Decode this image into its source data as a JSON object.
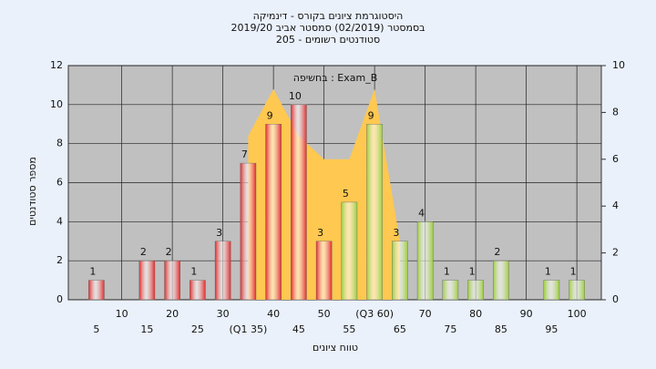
{
  "chart_data": {
    "type": "bar",
    "title": [
      "היסטוגרמת ציונים בקורס - דינמיקה",
      "בסמסטר  (02/2019)  סמסטר אביב 2019/20",
      "סטודנטים רשומים - 205"
    ],
    "y_label": "מספר סטודנטים",
    "x_label": "טווח ציונים",
    "categories": [
      "5",
      "10",
      "15",
      "20",
      "25",
      "30",
      "(Q1 35)",
      "40",
      "45",
      "50",
      "55",
      "(Q3 60)",
      "65",
      "70",
      "75",
      "80",
      "85",
      "90",
      "95",
      "100"
    ],
    "series": [
      {
        "name": "בחשיפה : Exam_B",
        "values": [
          1,
          0,
          2,
          2,
          1,
          3,
          7,
          9,
          10,
          3,
          5,
          9,
          3,
          4,
          1,
          1,
          2,
          0,
          1,
          1
        ],
        "colors": [
          "#e02a2a",
          "#e02a2a",
          "#e02a2a",
          "#e02a2a",
          "#e02a2a",
          "#e02a2a",
          "#e02a2a",
          "#e02a2a",
          "#e02a2a",
          "#e02a2a",
          "#9ccc3c",
          "#9ccc3c",
          "#9ccc3c",
          "#9ccc3c",
          "#9ccc3c",
          "#9ccc3c",
          "#9ccc3c",
          "#9ccc3c",
          "#9ccc3c",
          "#9ccc3c"
        ]
      },
      {
        "type": "area",
        "axis": "y2",
        "color": "#ffc850",
        "values": [
          null,
          null,
          null,
          null,
          null,
          null,
          7,
          9,
          7,
          6,
          6,
          9,
          2.5,
          null,
          null,
          null,
          null,
          null,
          null,
          null
        ]
      }
    ],
    "ylim": [
      0,
      12
    ],
    "yticks": [
      0,
      2,
      4,
      6,
      8,
      10,
      12
    ],
    "y2lim": [
      0,
      10
    ],
    "y2ticks": [
      0,
      2,
      4,
      6,
      8,
      10
    ],
    "grid": true
  }
}
